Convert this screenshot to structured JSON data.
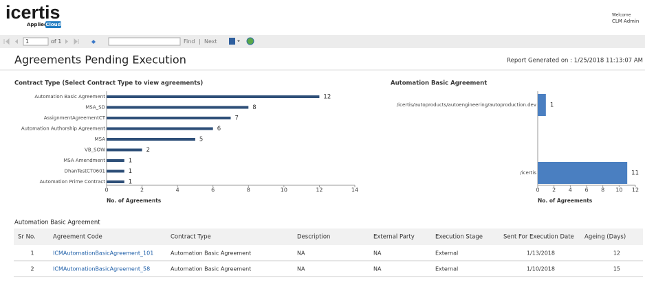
{
  "header": {
    "logo": "icertis",
    "logo_sub": "Applied",
    "logo_badge": "Cloud",
    "welcome": "Welcome",
    "user": "CLM Admin"
  },
  "toolbar": {
    "page": "1",
    "of": "of 1",
    "find": "Find",
    "separator": "|",
    "next": "Next"
  },
  "report": {
    "title": "Agreements Pending Execution",
    "generated": "Report Generated on : 1/25/2018 11:13:07 AM"
  },
  "chart_data": [
    {
      "type": "bar",
      "orientation": "horizontal",
      "title": "Contract Type (Select Contract Type to view agreements)",
      "categories": [
        "Automation Basic Agreement",
        "MSA_SD",
        "AssignmentAgreementCT",
        "Automation Authorship Agreement",
        "MSA",
        "VB_SOW",
        "MSA Amendment",
        "DhanTestCT0601",
        "Automation Prime Contract"
      ],
      "values": [
        12,
        8,
        7,
        6,
        5,
        2,
        1,
        1,
        1
      ],
      "color": "#2e4f78",
      "xlabel": "No. of Agreements",
      "xlim": [
        0,
        14
      ],
      "xticks": [
        0,
        2,
        4,
        6,
        8,
        10,
        12,
        14
      ]
    },
    {
      "type": "bar",
      "orientation": "horizontal",
      "title": "Automation Basic Agreement",
      "categories": [
        "/icertis/autoproducts/autoengineering/autoproduction.dev",
        "/icertis"
      ],
      "values": [
        1,
        11
      ],
      "color": "#4a7fc1",
      "xlabel": "No. of Agreements",
      "xlim": [
        0,
        12
      ],
      "xticks": [
        0,
        2,
        4,
        6,
        8,
        10,
        12
      ]
    }
  ],
  "table": {
    "title": "Automation Basic Agreement",
    "columns": [
      "Sr No.",
      "Agreement Code",
      "Contract Type",
      "Description",
      "External Party",
      "Execution Stage",
      "Sent For Execution Date",
      "Ageing (Days)"
    ],
    "rows": [
      [
        "1",
        "ICMAutomationBasicAgreement_101",
        "Automation Basic Agreement",
        "NA",
        "NA",
        "External",
        "1/13/2018",
        "12"
      ],
      [
        "2",
        "ICMAutomationBasicAgreement_58",
        "Automation Basic Agreement",
        "NA",
        "NA",
        "External",
        "1/10/2018",
        "15"
      ]
    ]
  }
}
